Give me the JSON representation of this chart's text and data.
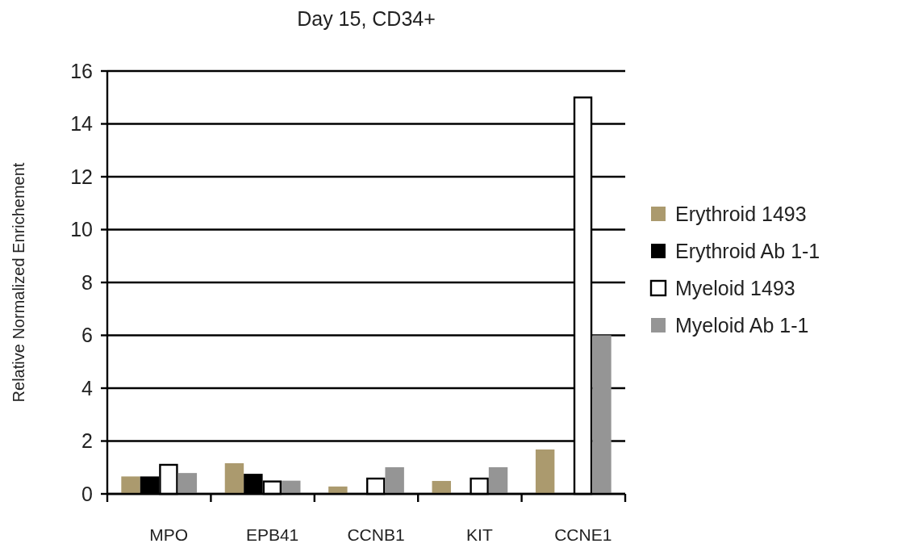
{
  "chart_data": {
    "type": "bar",
    "title": "Day 15, CD34+",
    "ylabel": "Relative Normalized Enrichement",
    "categories": [
      "MPO",
      "EPB41",
      "CCNB1",
      "KIT",
      "CCNE1"
    ],
    "series": [
      {
        "name": "Erythroid 1493",
        "color": "#ab9a6e",
        "values": [
          0.66,
          1.16,
          0.28,
          0.49,
          1.68
        ]
      },
      {
        "name": "Erythroid Ab 1-1",
        "color": "#000000",
        "values": [
          0.66,
          0.76,
          null,
          null,
          null
        ]
      },
      {
        "name": "Myeloid 1493",
        "color": "#ffffff",
        "values": [
          1.1,
          0.47,
          0.58,
          0.58,
          15
        ]
      },
      {
        "name": "Myeloid Ab 1-1",
        "color": "#959595",
        "values": [
          0.79,
          0.5,
          1.01,
          1.01,
          6
        ]
      }
    ],
    "ylim": [
      0,
      16
    ],
    "yticks": [
      0,
      2,
      4,
      6,
      8,
      10,
      12,
      14,
      16
    ],
    "grid": "y",
    "legend": "right"
  }
}
